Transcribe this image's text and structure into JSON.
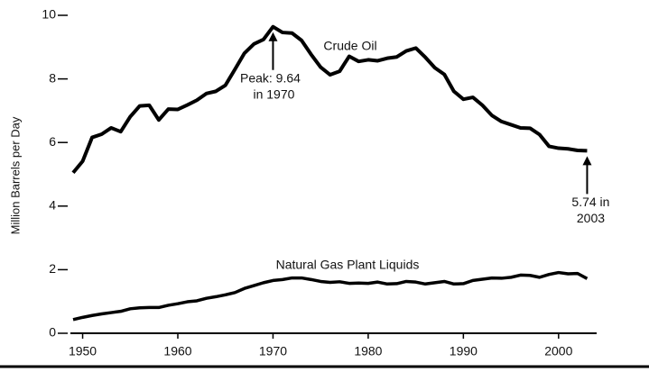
{
  "chart_data": {
    "type": "line",
    "y_label": "Million Barrels per Day",
    "x": [
      1949,
      1950,
      1951,
      1952,
      1953,
      1954,
      1955,
      1956,
      1957,
      1958,
      1959,
      1960,
      1961,
      1962,
      1963,
      1964,
      1965,
      1966,
      1967,
      1968,
      1969,
      1970,
      1971,
      1972,
      1973,
      1974,
      1975,
      1976,
      1977,
      1978,
      1979,
      1980,
      1981,
      1982,
      1983,
      1984,
      1985,
      1986,
      1987,
      1988,
      1989,
      1990,
      1991,
      1992,
      1993,
      1994,
      1995,
      1996,
      1997,
      1998,
      1999,
      2000,
      2001,
      2002,
      2003
    ],
    "series": [
      {
        "name": "Crude Oil",
        "color": "#000000",
        "values": [
          5.05,
          5.41,
          6.16,
          6.26,
          6.46,
          6.34,
          6.81,
          7.15,
          7.17,
          6.71,
          7.05,
          7.04,
          7.18,
          7.33,
          7.54,
          7.61,
          7.8,
          8.3,
          8.81,
          9.1,
          9.24,
          9.64,
          9.46,
          9.44,
          9.21,
          8.77,
          8.37,
          8.13,
          8.24,
          8.71,
          8.55,
          8.6,
          8.57,
          8.65,
          8.69,
          8.88,
          8.97,
          8.68,
          8.35,
          8.14,
          7.61,
          7.36,
          7.42,
          7.17,
          6.85,
          6.66,
          6.56,
          6.46,
          6.45,
          6.25,
          5.88,
          5.82,
          5.8,
          5.75,
          5.74
        ]
      },
      {
        "name": "Natural Gas Plant Liquids",
        "color": "#000000",
        "values": [
          0.43,
          0.5,
          0.56,
          0.61,
          0.65,
          0.69,
          0.77,
          0.8,
          0.81,
          0.81,
          0.88,
          0.93,
          0.99,
          1.02,
          1.1,
          1.15,
          1.21,
          1.28,
          1.41,
          1.5,
          1.59,
          1.66,
          1.69,
          1.74,
          1.74,
          1.69,
          1.63,
          1.6,
          1.62,
          1.57,
          1.58,
          1.57,
          1.61,
          1.55,
          1.56,
          1.63,
          1.61,
          1.55,
          1.59,
          1.63,
          1.55,
          1.56,
          1.66,
          1.7,
          1.74,
          1.73,
          1.76,
          1.83,
          1.82,
          1.76,
          1.85,
          1.91,
          1.87,
          1.88,
          1.72
        ]
      }
    ],
    "annotations": [
      [
        "Peak: 9.64",
        "in 1970"
      ],
      [
        "5.74 in",
        "2003"
      ]
    ],
    "xlim": [
      1949,
      2004
    ],
    "xticks": [
      1950,
      1960,
      1970,
      1980,
      1990,
      2000
    ],
    "ylim": [
      0,
      10
    ],
    "yticks": [
      0,
      2,
      4,
      6,
      8,
      10
    ]
  }
}
